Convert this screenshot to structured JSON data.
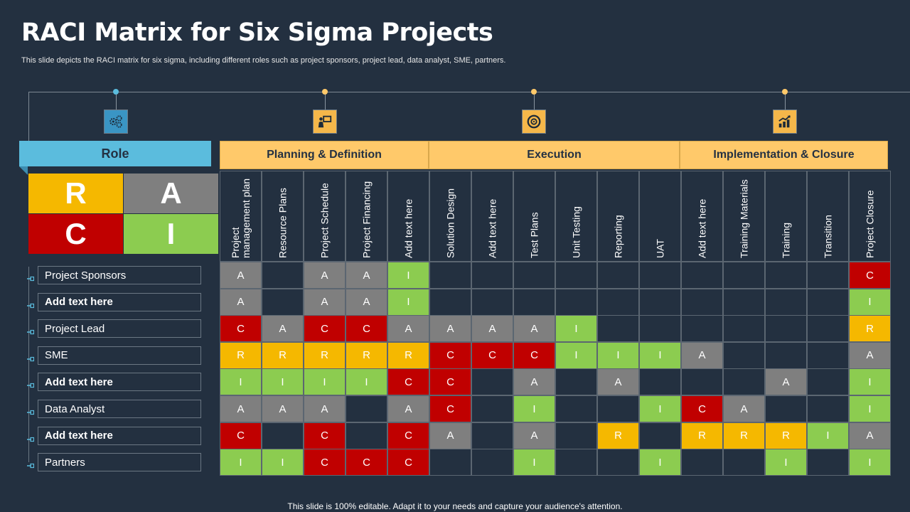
{
  "title": "RACI Matrix for Six Sigma Projects",
  "subtitle": "This slide depicts the RACI matrix for six sigma, including different roles such as project sponsors, project lead, data analyst, SME,  partners.",
  "footer": "This slide is 100% editable. Adapt it to your needs and capture your audience's attention.",
  "colors": {
    "R": "#f5b800",
    "A": "#7f7f7f",
    "C": "#c00000",
    "I": "#8ccc50",
    "background": "#233040",
    "header": "#ffc96a",
    "role": "#5bbcdd"
  },
  "icons": [
    "gears-icon",
    "presentation-icon",
    "target-icon",
    "growth-chart-icon"
  ],
  "role_header": "Role",
  "legend": [
    {
      "letter": "R",
      "color": "#f5b800"
    },
    {
      "letter": "A",
      "color": "#7f7f7f"
    },
    {
      "letter": "C",
      "color": "#c00000"
    },
    {
      "letter": "I",
      "color": "#8ccc50"
    }
  ],
  "phases": [
    "Planning & Definition",
    "Execution",
    "Implementation & Closure"
  ],
  "columns": [
    "Project management plan",
    "Resource Plans",
    "Project Schedule",
    "Project Financing",
    "Add text here",
    "Solution Design",
    "Add text here",
    "Test Plans",
    "Unit Testing",
    "Reporting",
    "UAT",
    "Add text here",
    "Training Materials",
    "Training",
    "Transition",
    "Project Closure"
  ],
  "rows": [
    {
      "label": "Project Sponsors",
      "bold": false,
      "cells": [
        "A",
        "",
        "A",
        "A",
        "I",
        "",
        "",
        "",
        "",
        "",
        "",
        "",
        "",
        "",
        "",
        "C"
      ]
    },
    {
      "label": "Add text here",
      "bold": true,
      "cells": [
        "A",
        "",
        "A",
        "A",
        "I",
        "",
        "",
        "",
        "",
        "",
        "",
        "",
        "",
        "",
        "",
        "I"
      ]
    },
    {
      "label": "Project Lead",
      "bold": false,
      "cells": [
        "C",
        "A",
        "C",
        "C",
        "A",
        "A",
        "A",
        "A",
        "I",
        "",
        "",
        "",
        "",
        "",
        "",
        "R"
      ]
    },
    {
      "label": "SME",
      "bold": false,
      "cells": [
        "R",
        "R",
        "R",
        "R",
        "R",
        "C",
        "C",
        "C",
        "I",
        "I",
        "I",
        "A",
        "",
        "",
        "",
        "A"
      ]
    },
    {
      "label": "Add text here",
      "bold": true,
      "cells": [
        "I",
        "I",
        "I",
        "I",
        "C",
        "C",
        "",
        "A",
        "",
        "A",
        "",
        "",
        "",
        "A",
        "",
        "I"
      ]
    },
    {
      "label": "Data Analyst",
      "bold": false,
      "cells": [
        "A",
        "A",
        "A",
        "",
        "A",
        "C",
        "",
        "I",
        "",
        "",
        "I",
        "C",
        "A",
        "",
        "",
        "I"
      ]
    },
    {
      "label": "Add text here",
      "bold": true,
      "cells": [
        "C",
        "",
        "C",
        "",
        "C",
        "A",
        "",
        "A",
        "",
        "R",
        "",
        "R",
        "R",
        "R",
        "I",
        "A"
      ]
    },
    {
      "label": "Partners",
      "bold": false,
      "cells": [
        "I",
        "I",
        "C",
        "C",
        "C",
        "",
        "",
        "I",
        "",
        "",
        "I",
        "",
        "",
        "I",
        "",
        "I"
      ]
    }
  ]
}
